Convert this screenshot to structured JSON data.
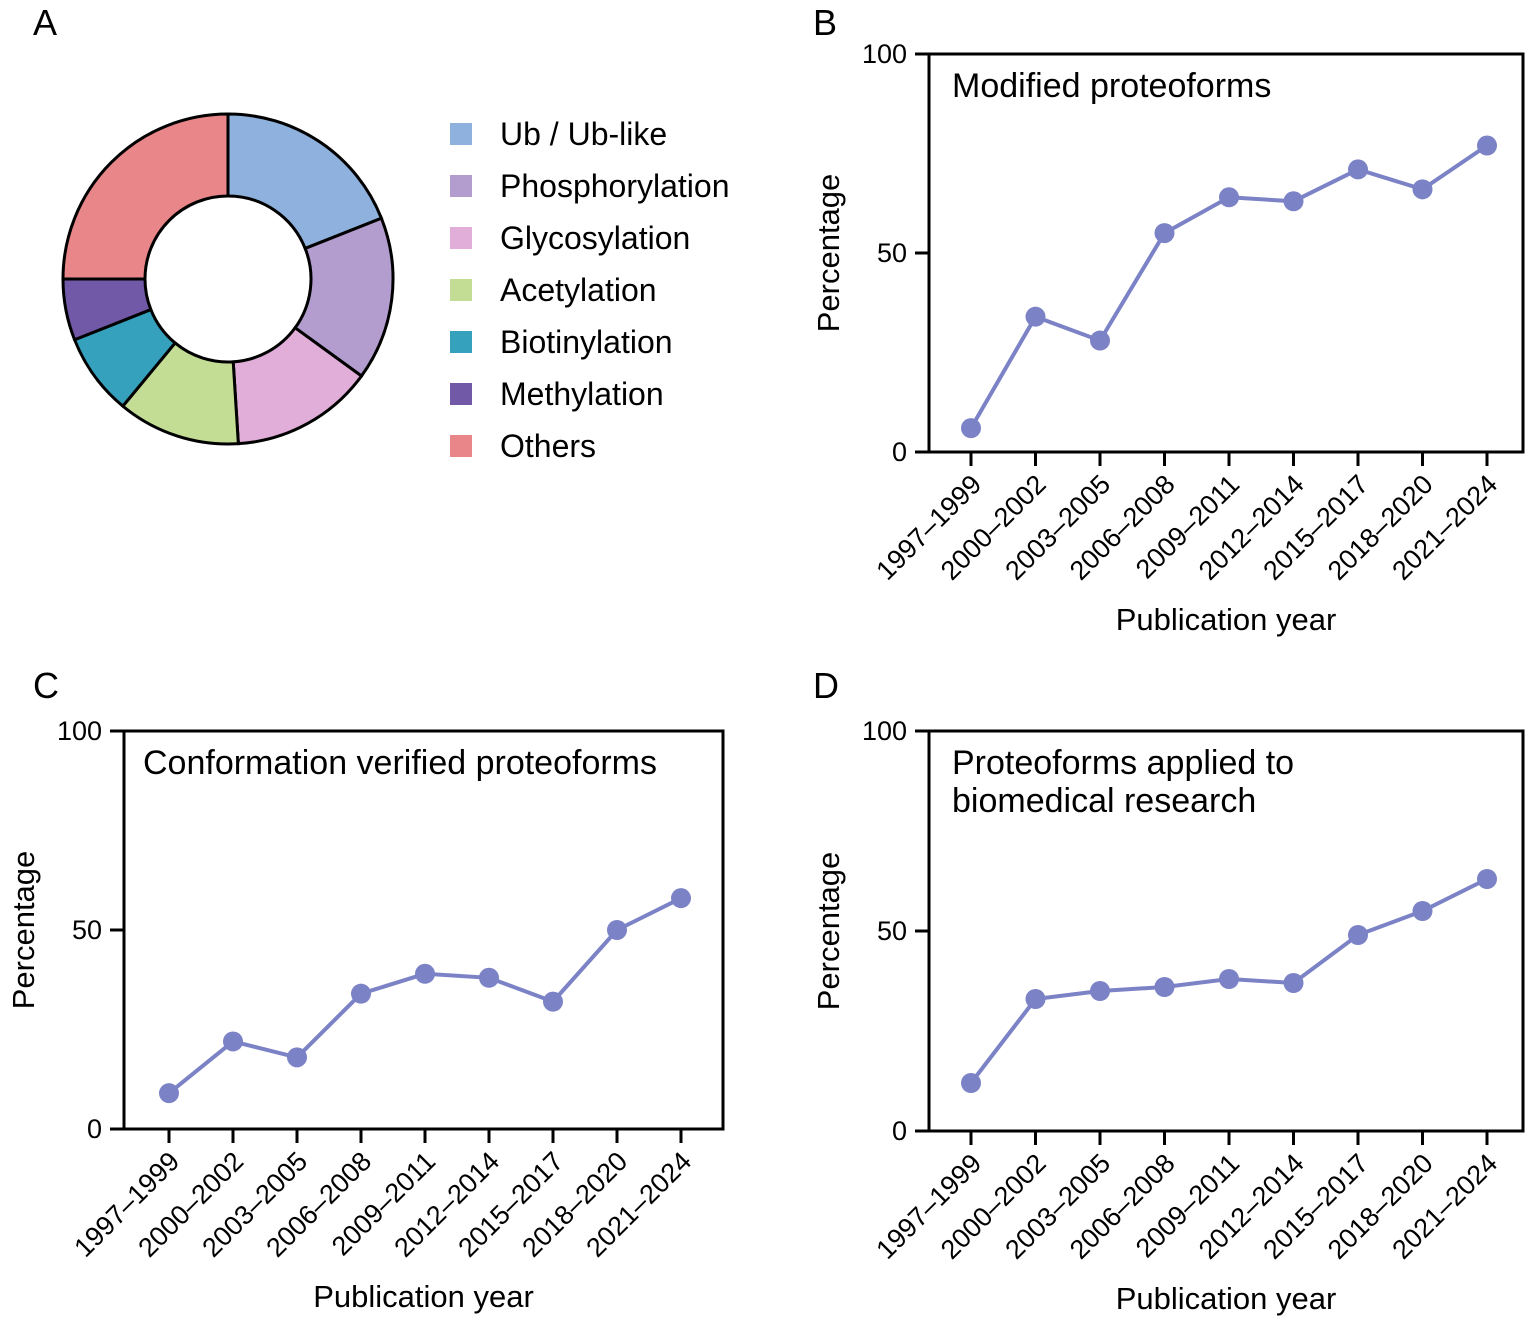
{
  "figure": {
    "background": "#ffffff",
    "axis_color": "#000000",
    "accent_line_color": "#7b82c6"
  },
  "panels": {
    "a": {
      "label": "A"
    },
    "b": {
      "label": "B"
    },
    "c": {
      "label": "C"
    },
    "d": {
      "label": "D"
    }
  },
  "chart_data": [
    {
      "id": "donut-a",
      "panel": "A",
      "type": "pie",
      "subtype": "donut",
      "legend_position": "right",
      "segments": [
        {
          "label": "Ub / Ub-like",
          "value": 19,
          "color": "#8fb1dd"
        },
        {
          "label": "Phosphorylation",
          "value": 16,
          "color": "#b29dce"
        },
        {
          "label": "Glycosylation",
          "value": 14,
          "color": "#e0aed8"
        },
        {
          "label": "Acetylation",
          "value": 12,
          "color": "#c4dd94"
        },
        {
          "label": "Biotinylation",
          "value": 8,
          "color": "#35a1bd"
        },
        {
          "label": "Methylation",
          "value": 6,
          "color": "#7159a8"
        },
        {
          "label": "Others",
          "value": 25,
          "color": "#e8868a"
        }
      ]
    },
    {
      "id": "line-b",
      "panel": "B",
      "type": "line",
      "title": "Modified proteoforms",
      "xlabel": "Publication year",
      "ylabel": "Percentage",
      "ylim": [
        0,
        100
      ],
      "yticks": [
        0,
        50,
        100
      ],
      "grid": false,
      "marker": "circle",
      "line_color": "#7b82c6",
      "categories": [
        "1997–1999",
        "2000–2002",
        "2003–2005",
        "2006–2008",
        "2009–2011",
        "2012–2014",
        "2015–2017",
        "2018–2020",
        "2021–2024"
      ],
      "values": [
        6,
        34,
        28,
        55,
        64,
        63,
        71,
        66,
        77
      ]
    },
    {
      "id": "line-c",
      "panel": "C",
      "type": "line",
      "title": "Conformation verified proteoforms",
      "xlabel": "Publication year",
      "ylabel": "Percentage",
      "ylim": [
        0,
        100
      ],
      "yticks": [
        0,
        50,
        100
      ],
      "grid": false,
      "marker": "circle",
      "line_color": "#7b82c6",
      "categories": [
        "1997–1999",
        "2000–2002",
        "2003–2005",
        "2006–2008",
        "2009–2011",
        "2012–2014",
        "2015–2017",
        "2018–2020",
        "2021–2024"
      ],
      "values": [
        9,
        22,
        18,
        34,
        39,
        38,
        32,
        50,
        58
      ]
    },
    {
      "id": "line-d",
      "panel": "D",
      "type": "line",
      "title": "Proteoforms applied to\nbiomedical research",
      "xlabel": "Publication year",
      "ylabel": "Percentage",
      "ylim": [
        0,
        100
      ],
      "yticks": [
        0,
        50,
        100
      ],
      "grid": false,
      "marker": "circle",
      "line_color": "#7b82c6",
      "categories": [
        "1997–1999",
        "2000–2002",
        "2003–2005",
        "2006–2008",
        "2009–2011",
        "2012–2014",
        "2015–2017",
        "2018–2020",
        "2021–2024"
      ],
      "values": [
        12,
        33,
        35,
        36,
        38,
        37,
        49,
        55,
        63
      ]
    }
  ]
}
